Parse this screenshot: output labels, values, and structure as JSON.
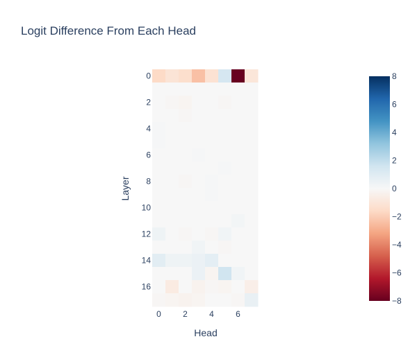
{
  "chart_data": {
    "type": "heatmap",
    "title": "Logit Difference From Each Head",
    "xlabel": "Head",
    "ylabel": "Layer",
    "x": [
      0,
      1,
      2,
      3,
      4,
      5,
      6,
      7
    ],
    "y": [
      0,
      1,
      2,
      3,
      4,
      5,
      6,
      7,
      8,
      9,
      10,
      11,
      12,
      13,
      14,
      15,
      16,
      17
    ],
    "x_tick_labels": [
      "0",
      "2",
      "4",
      "6"
    ],
    "y_tick_labels": [
      "0",
      "2",
      "4",
      "6",
      "8",
      "10",
      "12",
      "14",
      "16"
    ],
    "zmin": -8,
    "zmax": 8,
    "colorscale": "RdBu",
    "colorbar_ticks": [
      "8",
      "6",
      "4",
      "2",
      "0",
      "−2",
      "−4",
      "−6",
      "−8"
    ],
    "colorbar_tick_values": [
      8,
      6,
      4,
      2,
      0,
      -2,
      -4,
      -6,
      -8
    ],
    "z": [
      [
        -1.6,
        -1.1,
        -1.4,
        -2.4,
        -1.2,
        1.4,
        -8.0,
        -1.0
      ],
      [
        0.0,
        0.0,
        0.0,
        0.0,
        0.0,
        0.0,
        0.0,
        0.0
      ],
      [
        0.0,
        -0.1,
        -0.2,
        0.0,
        0.0,
        -0.1,
        0.0,
        0.0
      ],
      [
        0.0,
        0.0,
        -0.1,
        0.0,
        0.0,
        0.0,
        0.0,
        0.0
      ],
      [
        0.1,
        0.0,
        0.0,
        0.0,
        0.0,
        0.0,
        0.0,
        0.0
      ],
      [
        0.1,
        0.0,
        0.0,
        0.0,
        0.0,
        0.0,
        0.0,
        0.0
      ],
      [
        0.0,
        0.0,
        0.0,
        0.1,
        0.0,
        0.0,
        0.0,
        0.0
      ],
      [
        0.0,
        0.0,
        0.0,
        0.0,
        0.0,
        0.1,
        0.0,
        0.0
      ],
      [
        0.0,
        0.0,
        -0.1,
        0.0,
        0.1,
        0.0,
        0.0,
        0.0
      ],
      [
        0.0,
        0.0,
        0.0,
        0.0,
        0.1,
        0.0,
        0.0,
        0.0
      ],
      [
        0.0,
        0.0,
        0.0,
        0.0,
        0.0,
        0.0,
        0.0,
        0.0
      ],
      [
        0.0,
        0.0,
        0.0,
        0.0,
        0.0,
        0.0,
        0.2,
        0.0
      ],
      [
        0.4,
        0.0,
        -0.1,
        0.0,
        -0.1,
        0.3,
        0.0,
        0.0
      ],
      [
        0.0,
        0.0,
        0.0,
        0.3,
        0.0,
        -0.1,
        0.0,
        0.0
      ],
      [
        0.9,
        0.4,
        0.4,
        0.5,
        0.8,
        0.0,
        0.0,
        0.0
      ],
      [
        0.0,
        0.0,
        0.0,
        0.5,
        -0.2,
        1.6,
        0.3,
        0.0
      ],
      [
        0.0,
        -0.7,
        0.0,
        -0.3,
        -0.1,
        -0.2,
        0.0,
        -0.5
      ],
      [
        -0.1,
        -0.2,
        -0.3,
        -0.2,
        0.0,
        0.0,
        -0.1,
        0.6
      ]
    ]
  }
}
